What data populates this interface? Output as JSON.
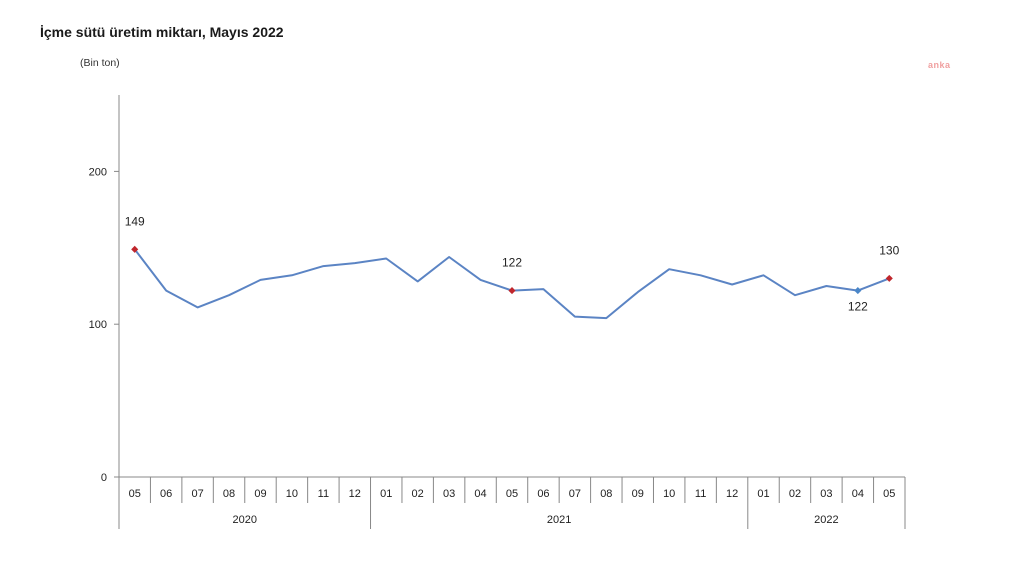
{
  "title": "İçme sütü üretim miktarı, Mayıs 2022",
  "unit_label": "(Bin ton)",
  "source_mark": "anka",
  "colors": {
    "line": "#5b84c4",
    "marker_highlight": "#c0262c",
    "marker_blue": "#4a86c8",
    "axis": "#888888",
    "text": "#222222"
  },
  "chart_data": {
    "type": "line",
    "title": "İçme sütü üretim miktarı, Mayıs 2022",
    "ylabel": "(Bin ton)",
    "ylim": [
      0,
      250
    ],
    "yticks": [
      0,
      100,
      200
    ],
    "grid": false,
    "categories": [
      "05",
      "06",
      "07",
      "08",
      "09",
      "10",
      "11",
      "12",
      "01",
      "02",
      "03",
      "04",
      "05",
      "06",
      "07",
      "08",
      "09",
      "10",
      "11",
      "12",
      "01",
      "02",
      "03",
      "04",
      "05"
    ],
    "years": [
      {
        "label": "2020",
        "start": 0,
        "end": 7
      },
      {
        "label": "2021",
        "start": 8,
        "end": 19
      },
      {
        "label": "2022",
        "start": 20,
        "end": 24
      }
    ],
    "series": [
      {
        "values": [
          149,
          122,
          111,
          119,
          129,
          132,
          138,
          140,
          143,
          128,
          144,
          129,
          122,
          123,
          105,
          104,
          121,
          136,
          132,
          126,
          132,
          119,
          125,
          122,
          130
        ]
      }
    ],
    "data_labels": [
      {
        "index": 0,
        "text": "149",
        "position": "above",
        "marker": "highlight"
      },
      {
        "index": 12,
        "text": "122",
        "position": "above",
        "marker": "highlight"
      },
      {
        "index": 23,
        "text": "122",
        "position": "below",
        "marker": "blue"
      },
      {
        "index": 24,
        "text": "130",
        "position": "above",
        "marker": "highlight"
      }
    ]
  }
}
